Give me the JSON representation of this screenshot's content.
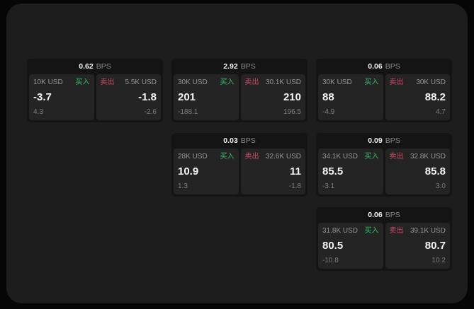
{
  "labels": {
    "bps_suffix": "BPS",
    "buy": "买入",
    "sell": "卖出"
  },
  "colors": {
    "surface": "#1d1d1d",
    "card": "#141414",
    "panel": "#242424",
    "buy_green": "#35bf6d",
    "sell_red": "#cf4a66",
    "text_primary": "#f5f5f5",
    "text_muted": "#8a8a8a"
  },
  "cards": [
    {
      "bps": "0.62",
      "buy": {
        "amount": "10K USD",
        "value": "-3.7",
        "sub": "4.3"
      },
      "sell": {
        "amount": "5.5K USD",
        "value": "-1.8",
        "sub": "-2.6"
      }
    },
    {
      "bps": "2.92",
      "buy": {
        "amount": "30K USD",
        "value": "201",
        "sub": "-188.1"
      },
      "sell": {
        "amount": "30.1K USD",
        "value": "210",
        "sub": "196.5"
      }
    },
    {
      "bps": "0.06",
      "buy": {
        "amount": "30K USD",
        "value": "88",
        "sub": "-4.9"
      },
      "sell": {
        "amount": "30K USD",
        "value": "88.2",
        "sub": "4.7"
      }
    },
    {
      "bps": "0.03",
      "buy": {
        "amount": "28K USD",
        "value": "10.9",
        "sub": "1.3"
      },
      "sell": {
        "amount": "32.6K USD",
        "value": "11",
        "sub": "-1.8"
      }
    },
    {
      "bps": "0.09",
      "buy": {
        "amount": "34.1K USD",
        "value": "85.5",
        "sub": "-3.1"
      },
      "sell": {
        "amount": "32.8K USD",
        "value": "85.8",
        "sub": "3.0"
      }
    },
    {
      "bps": "0.06",
      "buy": {
        "amount": "31.8K USD",
        "value": "80.5",
        "sub": "-10.8"
      },
      "sell": {
        "amount": "39.1K USD",
        "value": "80.7",
        "sub": "10.2"
      }
    }
  ]
}
